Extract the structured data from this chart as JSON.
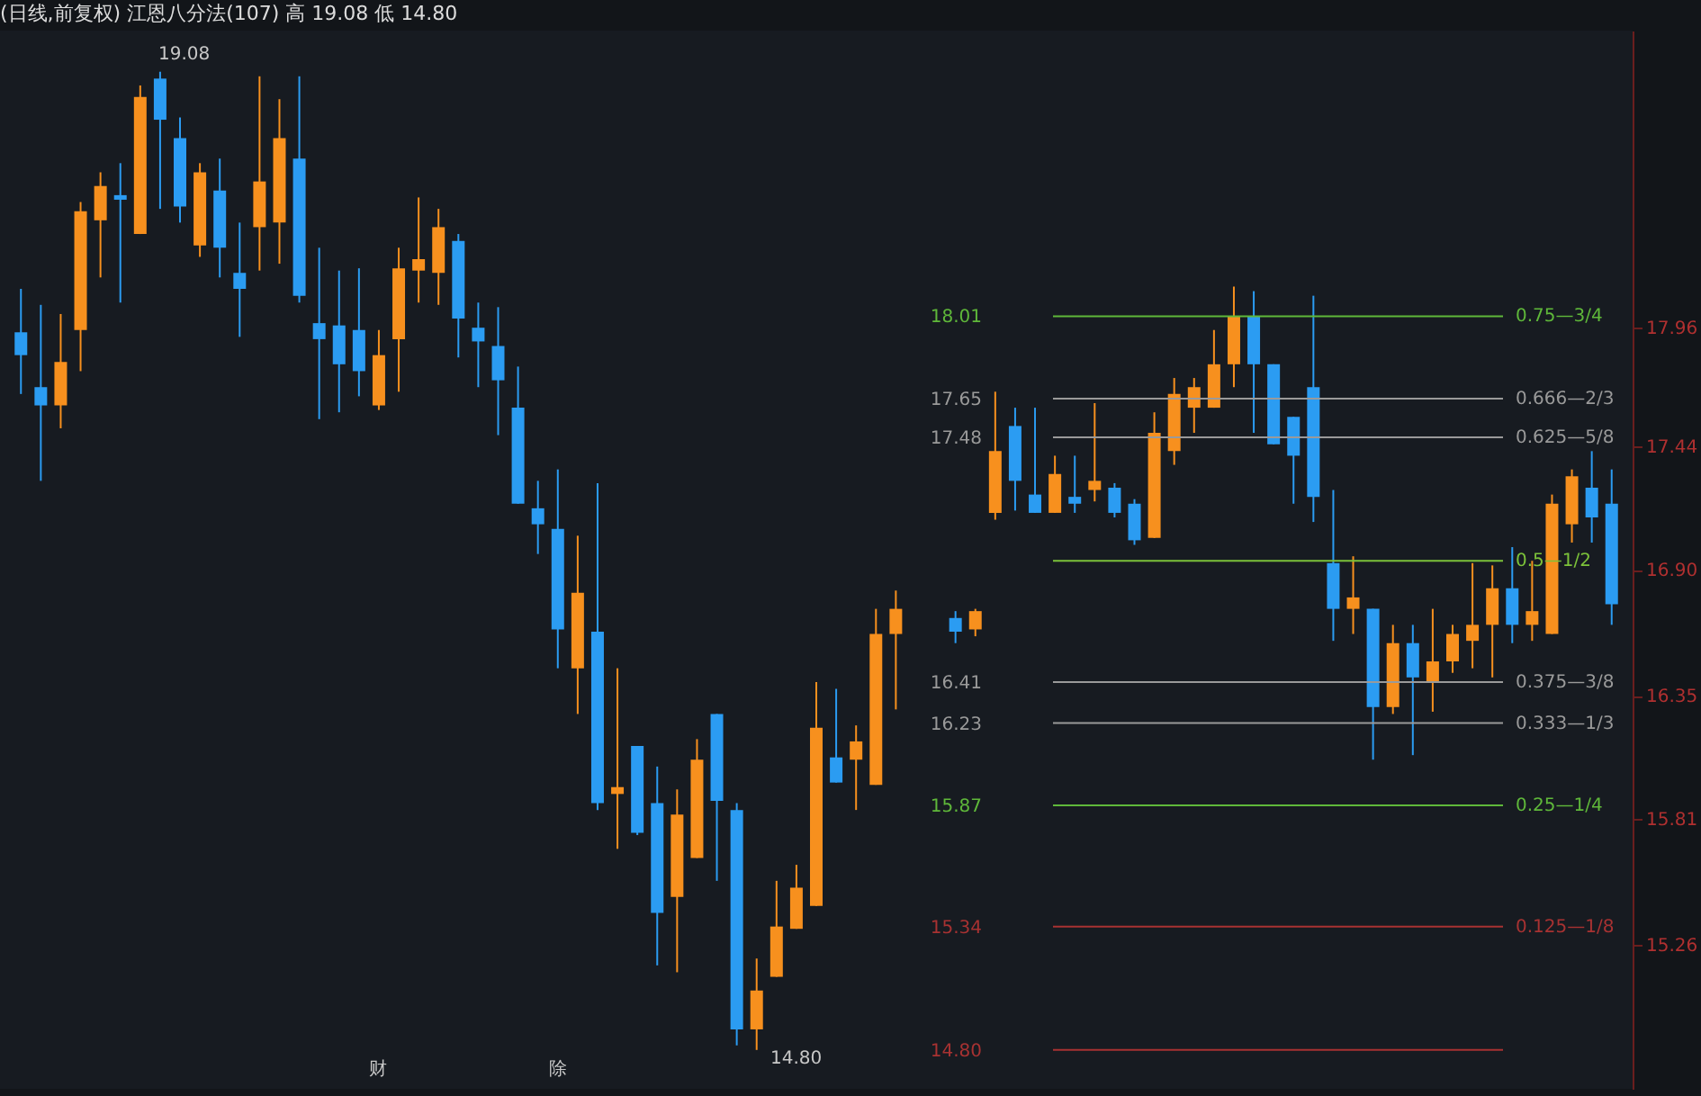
{
  "chart_data": {
    "type": "candlestick",
    "title": "(日线,前复权) 江恩八分法(107)  高 19.08  低 14.80",
    "categories": [
      null,
      null,
      null,
      null,
      null,
      null,
      null,
      null,
      null,
      null,
      null,
      null,
      null,
      null,
      null,
      null,
      null,
      null,
      null,
      null,
      null,
      null,
      null,
      null,
      null,
      null,
      null,
      null,
      null,
      null,
      null,
      null,
      null,
      null,
      null,
      null,
      null,
      null,
      null,
      null,
      null,
      null,
      null,
      null,
      null,
      null,
      null,
      null,
      null,
      null,
      null,
      null,
      null,
      null,
      null,
      null,
      null,
      null,
      null,
      null,
      null,
      null,
      null,
      null,
      null,
      null,
      null,
      null,
      null,
      null,
      null,
      null,
      null,
      null,
      null,
      null,
      null,
      null,
      null,
      null,
      null
    ],
    "ohlc": [
      [
        17.94,
        18.13,
        17.67,
        17.84
      ],
      [
        17.7,
        18.06,
        17.29,
        17.62
      ],
      [
        17.62,
        18.02,
        17.52,
        17.81
      ],
      [
        17.95,
        18.51,
        17.77,
        18.47
      ],
      [
        18.43,
        18.64,
        18.18,
        18.58
      ],
      [
        18.54,
        18.68,
        18.07,
        18.52
      ],
      [
        18.37,
        19.02,
        18.37,
        18.97
      ],
      [
        19.05,
        19.08,
        18.48,
        18.87
      ],
      [
        18.79,
        18.88,
        18.42,
        18.49
      ],
      [
        18.32,
        18.68,
        18.27,
        18.64
      ],
      [
        18.56,
        18.7,
        18.18,
        18.31
      ],
      [
        18.2,
        18.42,
        17.92,
        18.13
      ],
      [
        18.4,
        19.06,
        18.21,
        18.6
      ],
      [
        18.42,
        18.96,
        18.24,
        18.79
      ],
      [
        18.7,
        19.06,
        18.07,
        18.1
      ],
      [
        17.98,
        18.31,
        17.56,
        17.91
      ],
      [
        17.97,
        18.21,
        17.59,
        17.8
      ],
      [
        17.95,
        18.22,
        17.66,
        17.77
      ],
      [
        17.62,
        17.95,
        17.6,
        17.84
      ],
      [
        17.91,
        18.31,
        17.68,
        18.22
      ],
      [
        18.21,
        18.53,
        18.07,
        18.26
      ],
      [
        18.2,
        18.48,
        18.06,
        18.4
      ],
      [
        18.34,
        18.37,
        17.83,
        18.0
      ],
      [
        17.96,
        18.07,
        17.7,
        17.9
      ],
      [
        17.88,
        18.05,
        17.49,
        17.73
      ],
      [
        17.61,
        17.79,
        17.19,
        17.19
      ],
      [
        17.17,
        17.29,
        16.97,
        17.1
      ],
      [
        17.08,
        17.34,
        16.47,
        16.64
      ],
      [
        16.47,
        17.05,
        16.27,
        16.8
      ],
      [
        16.63,
        17.28,
        15.85,
        15.88
      ],
      [
        15.92,
        16.47,
        15.68,
        15.95
      ],
      [
        16.13,
        16.13,
        15.74,
        15.75
      ],
      [
        15.88,
        16.04,
        15.17,
        15.4
      ],
      [
        15.47,
        15.94,
        15.14,
        15.83
      ],
      [
        15.64,
        16.16,
        15.64,
        16.07
      ],
      [
        16.27,
        16.27,
        15.54,
        15.89
      ],
      [
        15.85,
        15.88,
        14.82,
        14.89
      ],
      [
        14.89,
        15.2,
        14.8,
        15.06
      ],
      [
        15.12,
        15.54,
        15.12,
        15.34
      ],
      [
        15.33,
        15.61,
        15.33,
        15.51
      ],
      [
        15.43,
        16.41,
        15.43,
        16.21
      ],
      [
        16.08,
        16.38,
        15.97,
        15.97
      ],
      [
        16.07,
        16.22,
        15.85,
        16.15
      ],
      [
        15.96,
        16.73,
        15.96,
        16.62
      ],
      [
        16.62,
        16.81,
        16.29,
        16.73
      ],
      null,
      null,
      [
        16.69,
        16.72,
        16.58,
        16.63
      ],
      [
        16.64,
        16.73,
        16.61,
        16.72
      ],
      [
        17.15,
        17.68,
        17.12,
        17.42
      ],
      [
        17.53,
        17.61,
        17.16,
        17.29
      ],
      [
        17.23,
        17.61,
        17.15,
        17.15
      ],
      [
        17.15,
        17.4,
        17.15,
        17.32
      ],
      [
        17.22,
        17.4,
        17.15,
        17.19
      ],
      [
        17.25,
        17.63,
        17.2,
        17.29
      ],
      [
        17.26,
        17.28,
        17.13,
        17.15
      ],
      [
        17.19,
        17.21,
        17.01,
        17.03
      ],
      [
        17.04,
        17.59,
        17.04,
        17.5
      ],
      [
        17.42,
        17.74,
        17.36,
        17.67
      ],
      [
        17.61,
        17.74,
        17.5,
        17.7
      ],
      [
        17.61,
        17.95,
        17.61,
        17.8
      ],
      [
        17.8,
        18.14,
        17.7,
        18.01
      ],
      [
        18.01,
        18.12,
        17.5,
        17.8
      ],
      [
        17.8,
        17.8,
        17.45,
        17.45
      ],
      [
        17.57,
        17.57,
        17.19,
        17.4
      ],
      [
        17.7,
        18.1,
        17.11,
        17.22
      ],
      [
        16.93,
        17.25,
        16.59,
        16.73
      ],
      [
        16.73,
        16.96,
        16.62,
        16.78
      ],
      [
        16.73,
        16.73,
        16.07,
        16.3
      ],
      [
        16.3,
        16.66,
        16.27,
        16.58
      ],
      [
        16.58,
        16.66,
        16.09,
        16.43
      ],
      [
        16.41,
        16.73,
        16.28,
        16.5
      ],
      [
        16.5,
        16.66,
        16.45,
        16.62
      ],
      [
        16.59,
        16.93,
        16.47,
        16.66
      ],
      [
        16.66,
        16.92,
        16.43,
        16.82
      ],
      [
        16.82,
        17.0,
        16.58,
        16.66
      ],
      [
        16.66,
        16.94,
        16.59,
        16.72
      ],
      [
        16.62,
        17.23,
        16.62,
        17.19
      ],
      [
        17.1,
        17.34,
        17.02,
        17.31
      ],
      [
        17.26,
        17.42,
        17.02,
        17.13
      ],
      [
        17.19,
        17.34,
        16.66,
        16.75
      ]
    ],
    "colors": [
      "#2b9cf2",
      "#2b9cf2",
      "#f7901e",
      "#f7901e",
      "#f7901e",
      "#2b9cf2",
      "#f7901e",
      "#2b9cf2",
      "#2b9cf2",
      "#f7901e",
      "#2b9cf2",
      "#2b9cf2",
      "#f7901e",
      "#f7901e",
      "#2b9cf2",
      "#2b9cf2",
      "#2b9cf2",
      "#2b9cf2",
      "#f7901e",
      "#f7901e",
      "#f7901e",
      "#f7901e",
      "#2b9cf2",
      "#2b9cf2",
      "#2b9cf2",
      "#2b9cf2",
      "#2b9cf2",
      "#2b9cf2",
      "#f7901e",
      "#2b9cf2",
      "#f7901e",
      "#2b9cf2",
      "#2b9cf2",
      "#f7901e",
      "#f7901e",
      "#2b9cf2",
      "#2b9cf2",
      "#f7901e",
      "#f7901e",
      "#f7901e",
      "#f7901e",
      "#2b9cf2",
      "#f7901e",
      "#f7901e",
      "#f7901e",
      null,
      null,
      "#2b9cf2",
      "#f7901e",
      "#f7901e",
      "#2b9cf2",
      "#2b9cf2",
      "#f7901e",
      "#2b9cf2",
      "#f7901e",
      "#2b9cf2",
      "#2b9cf2",
      "#f7901e",
      "#f7901e",
      "#f7901e",
      "#f7901e",
      "#f7901e",
      "#2b9cf2",
      "#2b9cf2",
      "#2b9cf2",
      "#2b9cf2",
      "#2b9cf2",
      "#f7901e",
      "#2b9cf2",
      "#f7901e",
      "#2b9cf2",
      "#f7901e",
      "#f7901e",
      "#f7901e",
      "#f7901e",
      "#2b9cf2",
      "#f7901e",
      "#f7901e",
      "#f7901e",
      "#2b9cf2",
      "#2b9cf2"
    ],
    "ylim": [
      14.63,
      19.26
    ],
    "yticks": [
      15.26,
      15.81,
      16.35,
      {
        "value": 16.9,
        "label": "16.90"
      },
      17.44,
      17.96
    ],
    "y2lim": [
      14.63,
      19.26
    ],
    "y2ticks": [
      {
        "value": 14.8,
        "label": "14.80"
      },
      15.34,
      15.87,
      16.23,
      16.41,
      17.48,
      17.65,
      18.01
    ],
    "ref_lines": [
      {
        "axis": "y",
        "value": 18.01,
        "label": "0.75—3/4",
        "color": "#5fb83a"
      },
      {
        "axis": "y",
        "value": 17.65,
        "label": "0.666—2/3",
        "color": "#9a9a9a"
      },
      {
        "axis": "y",
        "value": 17.48,
        "label": "0.625—5/8",
        "color": "#9a9a9a"
      },
      {
        "axis": "y",
        "value": 16.94,
        "label": "0.5—1/2",
        "color": "#7cc23a"
      },
      {
        "axis": "y",
        "value": 16.41,
        "label": "0.375—3/8",
        "color": "#9a9a9a"
      },
      {
        "axis": "y",
        "value": 16.23,
        "label": "0.333—1/3",
        "color": "#9a9a9a"
      },
      {
        "axis": "y",
        "value": 15.87,
        "label": "0.25—1/4",
        "color": "#5fb83a"
      },
      {
        "axis": "y",
        "value": 15.34,
        "label": "0.125—1/8",
        "color": "#a83232"
      },
      {
        "axis": "y",
        "value": 14.8,
        "label": null,
        "color": "#a83232"
      }
    ],
    "annotations": [
      "19.08",
      "14.80",
      "财",
      "除"
    ],
    "grid": false,
    "tick_labels": "y"
  }
}
